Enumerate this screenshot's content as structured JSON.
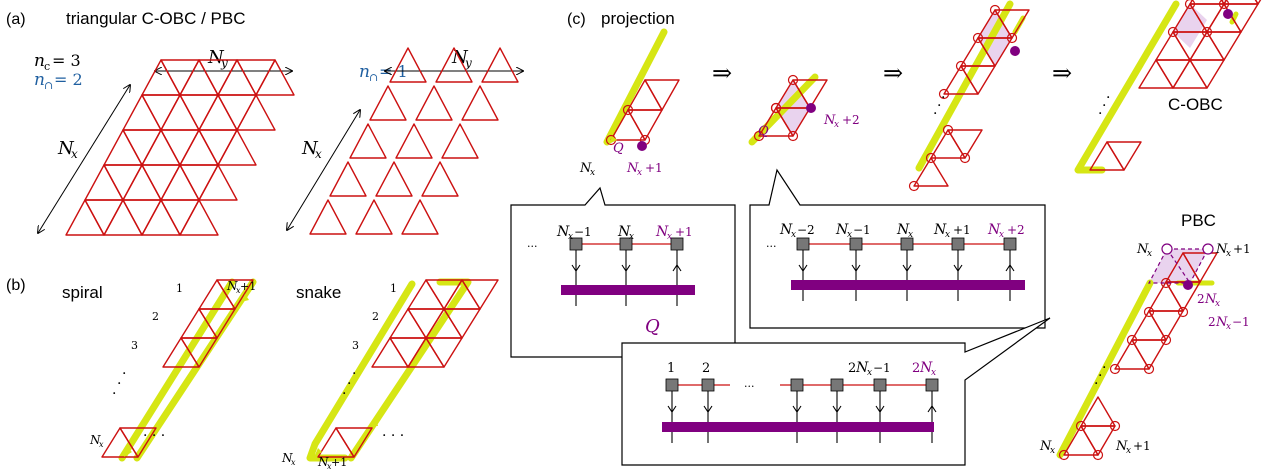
{
  "colors": {
    "tri": "#cc1111",
    "yellow": "#d6e614",
    "purple": "#800080",
    "blue": "#1f5fa0",
    "tensor": "#777777",
    "shade": "#e9d3ee"
  },
  "panel_a": {
    "label": "(a)",
    "title": "triangular C-OBC / PBC",
    "nc": "n",
    "nc_sub": "c",
    "nc_val": "= 3",
    "ncap": "n",
    "ncap_sub": "∩",
    "ncap_val": "= 2",
    "ncap2_val": "= 1",
    "Ny": "N",
    "Ny_sub": "y",
    "Nx": "N",
    "Nx_sub": "x"
  },
  "panel_b": {
    "label": "(b)",
    "spiral": "spiral",
    "snake": "snake",
    "num1": "1",
    "num2": "2",
    "num3": "3",
    "dots": "·",
    "hdots": "· · ·",
    "Nx": "N",
    "Nx_sub": "x",
    "Nx1": "N",
    "Nx1_sub": "x",
    "Nx1_tail": "+1"
  },
  "panel_c": {
    "label": "(c)",
    "title": "projection",
    "arrow": "⇒",
    "Q": "Q",
    "Nx": "N",
    "Nx_sub": "x",
    "plus1": "+1",
    "plus2": "+2",
    "minus1": "−1",
    "minus2": "−2",
    "two": "2",
    "one": "1",
    "ellipsis": "···",
    "cobc": "C-OBC",
    "pbc": "PBC"
  }
}
